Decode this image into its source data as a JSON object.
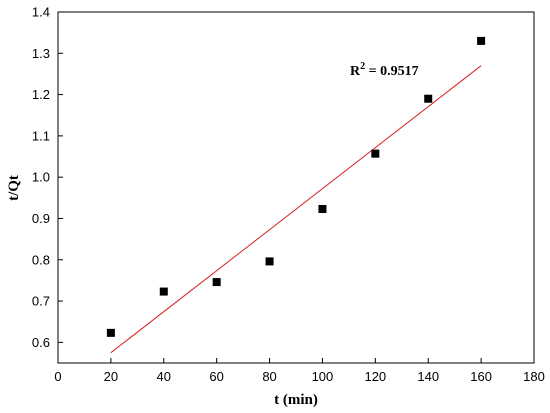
{
  "chart_data": {
    "type": "scatter",
    "xlabel": "t (min)",
    "ylabel": "t/Qt",
    "xlim": [
      0,
      180
    ],
    "ylim": [
      0.55,
      1.4
    ],
    "x_ticks": [
      0,
      20,
      40,
      60,
      80,
      100,
      120,
      140,
      160,
      180
    ],
    "y_ticks": [
      0.6,
      0.7,
      0.8,
      0.9,
      1.0,
      1.1,
      1.2,
      1.3,
      1.4
    ],
    "x_tick_labels": [
      "0",
      "20",
      "40",
      "60",
      "80",
      "100",
      "120",
      "140",
      "160",
      "180"
    ],
    "y_tick_labels": [
      "0.6",
      "0.7",
      "0.8",
      "0.9",
      "1.0",
      "1.1",
      "1.2",
      "1.3",
      "1.4"
    ],
    "series": [
      {
        "marker": "square",
        "color": "#000000",
        "x": [
          20,
          40,
          60,
          80,
          100,
          120,
          140,
          160
        ],
        "y": [
          0.623,
          0.723,
          0.746,
          0.796,
          0.923,
          1.057,
          1.19,
          1.33
        ]
      }
    ],
    "fit_line": {
      "color": "#d62020",
      "x": [
        20,
        160
      ],
      "y": [
        0.575,
        1.27
      ]
    },
    "annotation": {
      "prefix": "R",
      "sup": "2",
      "suffix": " = 0.9517"
    },
    "grid": false,
    "legend": "none"
  }
}
